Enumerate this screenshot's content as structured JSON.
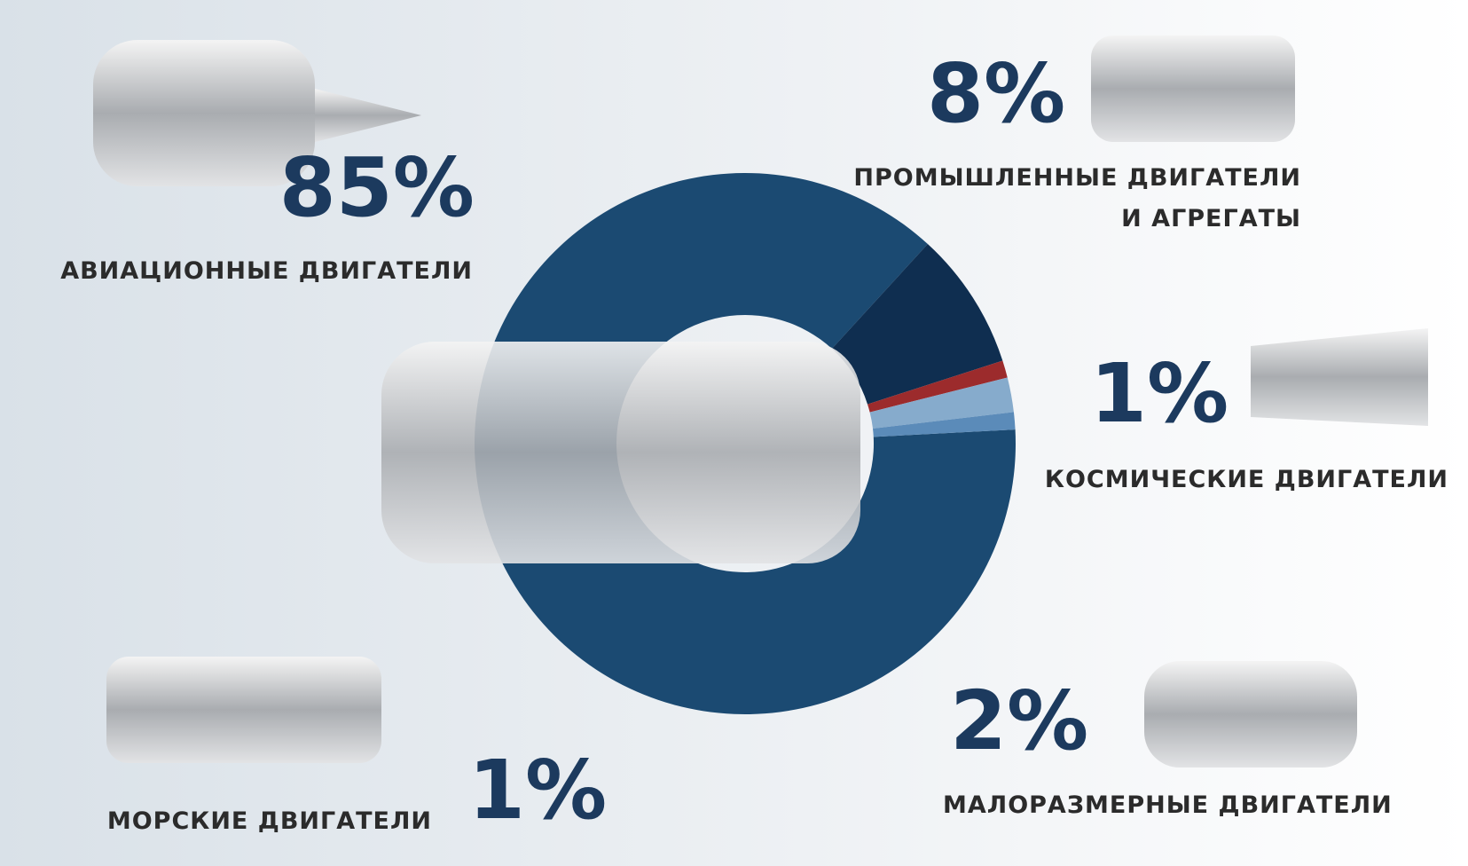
{
  "chart_data": {
    "type": "pie",
    "categories": [
      "АВИАЦИОННЫЕ ДВИГАТЕЛИ",
      "ПРОМЫШЛЕННЫЕ ДВИГАТЕЛИ\nИ АГРЕГАТЫ",
      "КОСМИЧЕСКИЕ ДВИГАТЕЛИ",
      "МАЛОРАЗМЕРНЫЕ  ДВИГАТЕЛИ",
      "МОРСКИЕ ДВИГАТЕЛИ"
    ],
    "values": [
      85,
      8,
      1,
      2,
      1
    ],
    "value_labels": [
      "85%",
      "8%",
      "1%",
      "2%",
      "1%"
    ],
    "colors": [
      "#1b4a72",
      "#0f2e50",
      "#9c2b2c",
      "#86abcc",
      "#5b8bb9"
    ]
  }
}
